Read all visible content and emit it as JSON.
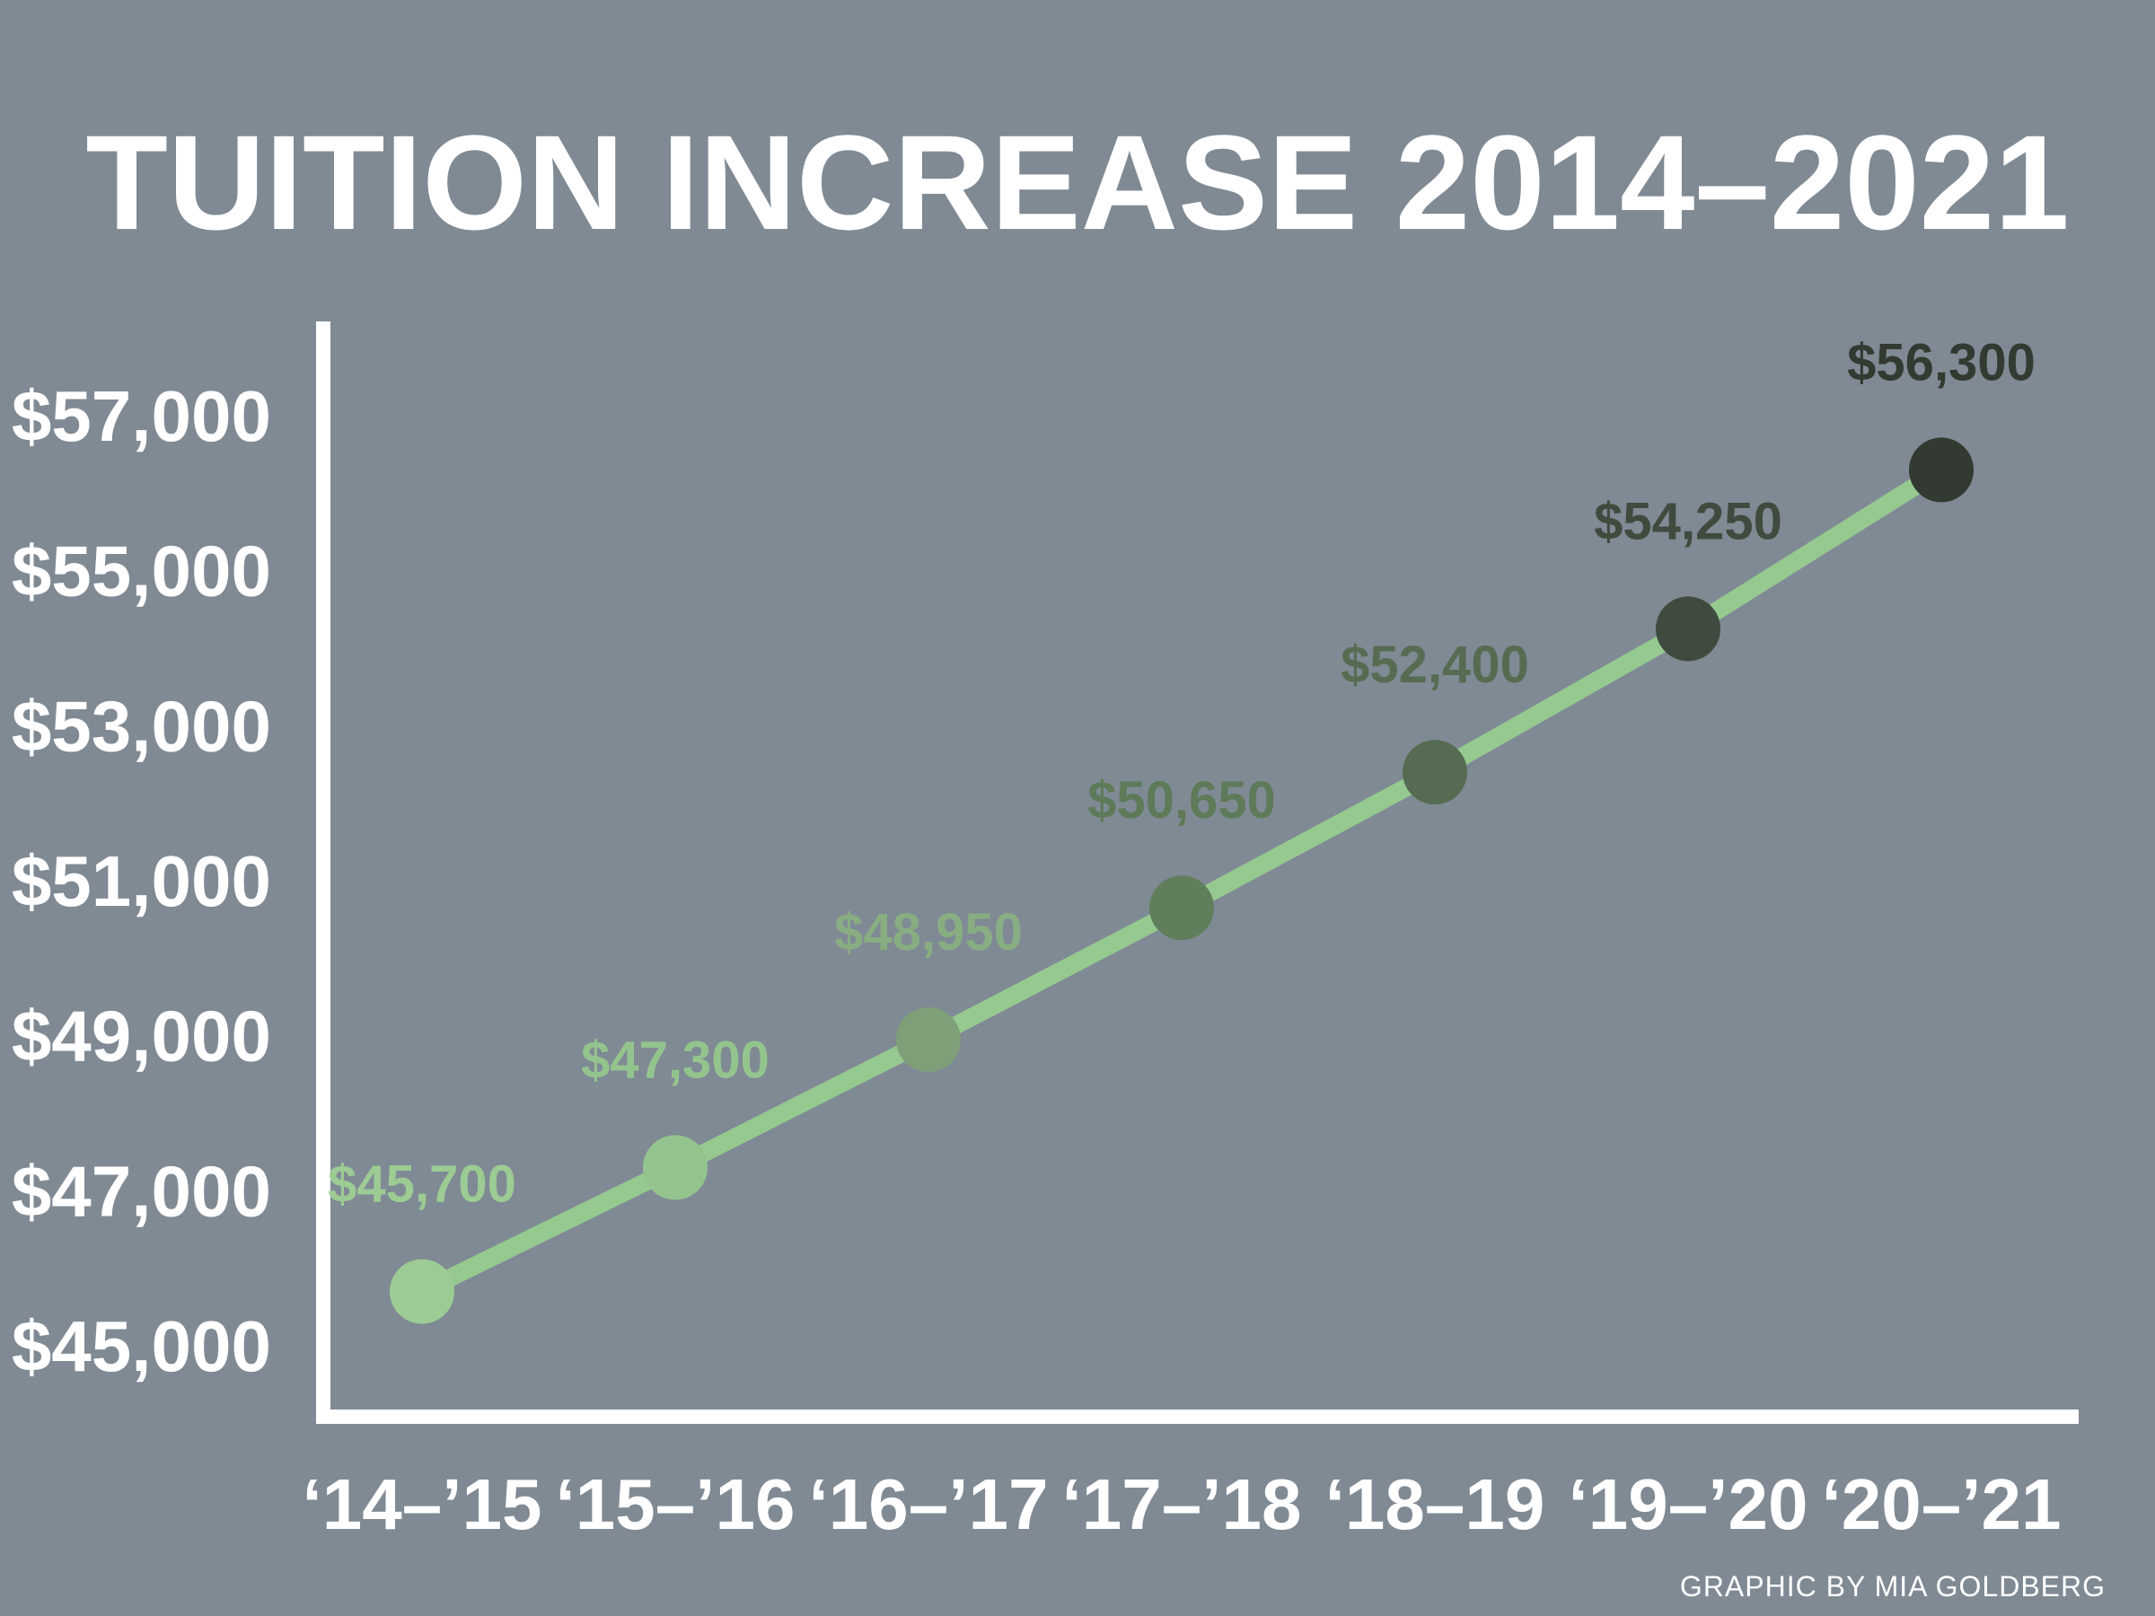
{
  "chart_data": {
    "type": "line",
    "title": "TUITION INCREASE 2014–2021",
    "xlabel": "",
    "ylabel": "",
    "categories": [
      "‘14–’15",
      "‘15–’16",
      "‘16–’17",
      "‘17–’18",
      "‘18–19",
      "‘19–’20",
      "‘20–’21"
    ],
    "series": [
      {
        "values": [
          45700,
          47300,
          48950,
          50650,
          52400,
          54250,
          56300
        ],
        "labels": [
          "$45,700",
          "$47,300",
          "$48,950",
          "$50,650",
          "$52,400",
          "$54,250",
          "$56,300"
        ]
      }
    ],
    "ylim": [
      45000,
      57000
    ],
    "yticks": [
      {
        "value": 45000,
        "label": "$45,000"
      },
      {
        "value": 47000,
        "label": "$47,000"
      },
      {
        "value": 49000,
        "label": "$49,000"
      },
      {
        "value": 51000,
        "label": "$51,000"
      },
      {
        "value": 53000,
        "label": "$53,000"
      },
      {
        "value": 55000,
        "label": "$55,000"
      },
      {
        "value": 57000,
        "label": "$57,000"
      }
    ],
    "grid": false,
    "legend": "none"
  },
  "credit": "GRAPHIC BY MIA GOLDBERG",
  "colors": {
    "background": "#7f8a94",
    "axis": "#ffffff",
    "line": "#96c990",
    "points": [
      "#9ccb94",
      "#94c48d",
      "#7e9f78",
      "#617e5c",
      "#566c52",
      "#3f4b3e",
      "#323a31"
    ],
    "labels": [
      "#9ccb94",
      "#94c48d",
      "#88ad82",
      "#5e7a59",
      "#566c52",
      "#3f4b3e",
      "#323a31"
    ]
  }
}
